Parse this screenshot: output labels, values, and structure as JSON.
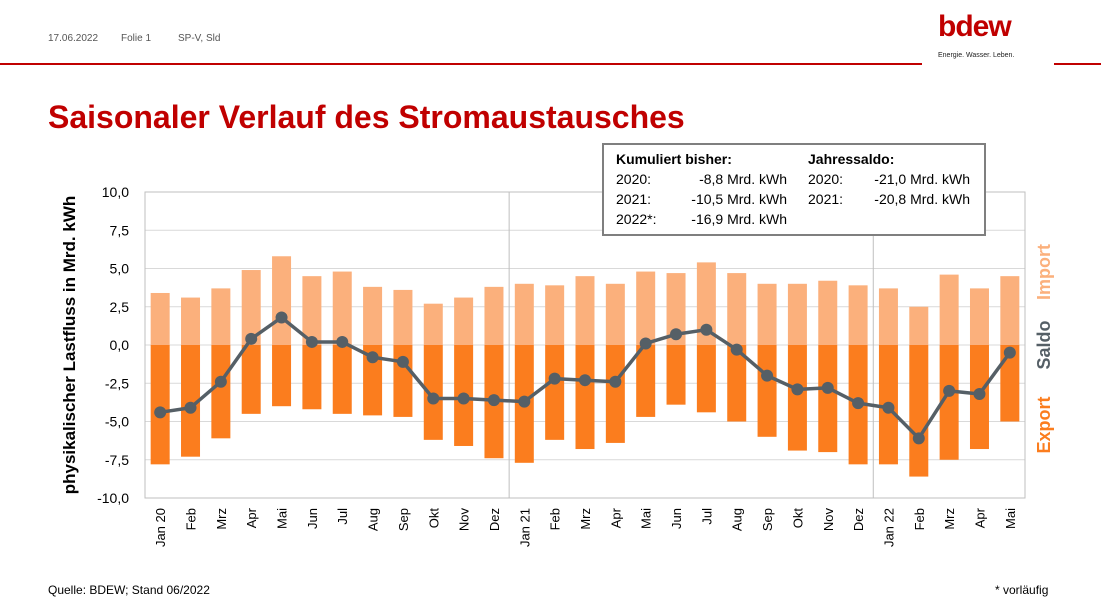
{
  "header": {
    "date": "17.06.2022",
    "slide": "Folie 1",
    "author": "SP-V, Sld",
    "logo_word": "bdew",
    "logo_tagline": "Energie. Wasser. Leben.",
    "accent_color": "#c00000"
  },
  "title": "Saisonaler Verlauf des Stromaustausches",
  "infobox": {
    "left_heading": "Kumuliert bisher:",
    "left_rows": [
      {
        "label": "2020:",
        "value": "-8,8 Mrd. kWh"
      },
      {
        "label": "2021:",
        "value": "-10,5 Mrd. kWh"
      },
      {
        "label": "2022*:",
        "value": "-16,9 Mrd. kWh"
      }
    ],
    "right_heading": "Jahressaldo:",
    "right_rows": [
      {
        "label": "2020:",
        "value": "-21,0 Mrd. kWh"
      },
      {
        "label": "2021:",
        "value": "-20,8 Mrd. kWh"
      }
    ]
  },
  "footer": {
    "source": "Quelle: BDEW; Stand 06/2022",
    "note": "* vorläufig"
  },
  "chart_data": {
    "type": "bar",
    "ylabel": "physikalischer Lastfluss in Mrd. kWh",
    "ylim": [
      -10,
      10
    ],
    "yticks": [
      10,
      7.5,
      5,
      2.5,
      0,
      -2.5,
      -5,
      -7.5,
      -10
    ],
    "ytick_labels": [
      "10,0",
      "7,5",
      "5,0",
      "2,5",
      "0,0",
      "-2,5",
      "-5,0",
      "-7,5",
      "-10,0"
    ],
    "grid": true,
    "year_separators_after": [
      11,
      23
    ],
    "categories": [
      "Jan 20",
      "Feb",
      "Mrz",
      "Apr",
      "Mai",
      "Jun",
      "Jul",
      "Aug",
      "Sep",
      "Okt",
      "Nov",
      "Dez",
      "Jan 21",
      "Feb",
      "Mrz",
      "Apr",
      "Mai",
      "Jun",
      "Jul",
      "Aug",
      "Sep",
      "Okt",
      "Nov",
      "Dez",
      "Jan 22",
      "Feb",
      "Mrz",
      "Apr",
      "Mai"
    ],
    "series": [
      {
        "name": "Import",
        "type": "bar",
        "color": "#fbb07c",
        "values": [
          3.4,
          3.1,
          3.7,
          4.9,
          5.8,
          4.5,
          4.8,
          3.8,
          3.6,
          2.7,
          3.1,
          3.8,
          4.0,
          3.9,
          4.5,
          4.0,
          4.8,
          4.7,
          5.4,
          4.7,
          4.0,
          4.0,
          4.2,
          3.9,
          3.7,
          2.5,
          4.6,
          3.7,
          4.5
        ]
      },
      {
        "name": "Export",
        "type": "bar",
        "color": "#fb7d1e",
        "values": [
          -7.8,
          -7.3,
          -6.1,
          -4.5,
          -4.0,
          -4.2,
          -4.5,
          -4.6,
          -4.7,
          -6.2,
          -6.6,
          -7.4,
          -7.7,
          -6.2,
          -6.8,
          -6.4,
          -4.7,
          -3.9,
          -4.4,
          -5.0,
          -6.0,
          -6.9,
          -7.0,
          -7.8,
          -7.8,
          -8.6,
          -7.5,
          -6.8,
          -5.0
        ]
      },
      {
        "name": "Saldo",
        "type": "line",
        "color": "#555f66",
        "values": [
          -4.4,
          -4.1,
          -2.4,
          0.4,
          1.8,
          0.2,
          0.2,
          -0.8,
          -1.1,
          -3.5,
          -3.5,
          -3.6,
          -3.7,
          -2.2,
          -2.3,
          -2.4,
          0.1,
          0.7,
          1.0,
          -0.3,
          -2.0,
          -2.9,
          -2.8,
          -3.8,
          -4.1,
          -6.1,
          -3.0,
          -3.2,
          -0.5
        ]
      }
    ],
    "legend_placement": "right, vertical"
  }
}
